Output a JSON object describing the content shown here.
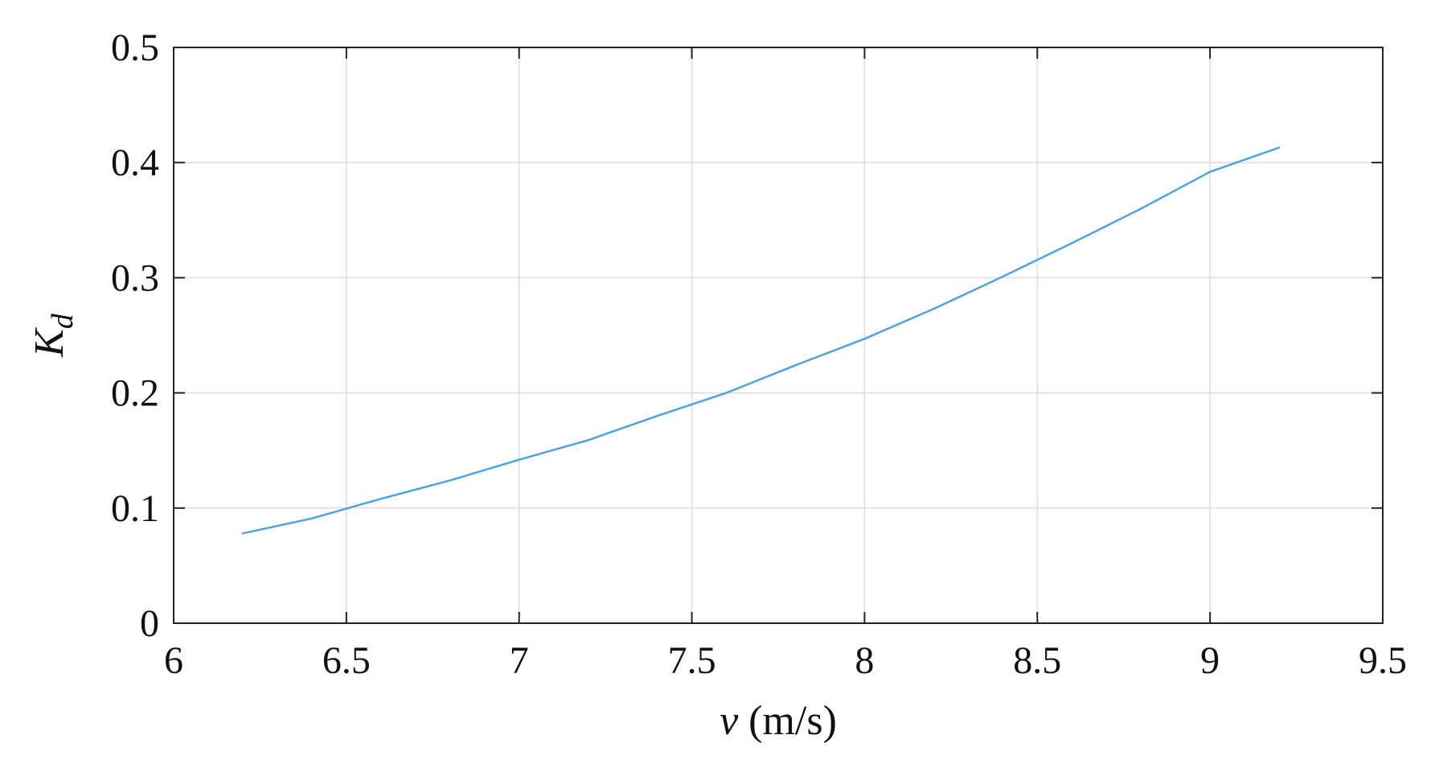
{
  "chart_data": {
    "type": "line",
    "title": "",
    "xlabel": {
      "symbol": "v",
      "unit": " (m/s)"
    },
    "ylabel": {
      "symbol": "K",
      "subscript": "d"
    },
    "xlim": [
      6,
      9.5
    ],
    "ylim": [
      0,
      0.5
    ],
    "xticks": [
      6,
      6.5,
      7,
      7.5,
      8,
      8.5,
      9,
      9.5
    ],
    "xtick_labels": [
      "6",
      "6.5",
      "7",
      "7.5",
      "8",
      "8.5",
      "9",
      "9.5"
    ],
    "yticks": [
      0,
      0.1,
      0.2,
      0.3,
      0.4,
      0.5
    ],
    "ytick_labels": [
      "0",
      "0.1",
      "0.2",
      "0.3",
      "0.4",
      "0.5"
    ],
    "grid": true,
    "series": [
      {
        "color": "#4da3df",
        "x": [
          6.2,
          6.4,
          6.6,
          6.8,
          7.0,
          7.2,
          7.4,
          7.6,
          7.8,
          8.0,
          8.2,
          8.4,
          8.6,
          8.8,
          9.0,
          9.2
        ],
        "y": [
          0.078,
          0.091,
          0.108,
          0.124,
          0.142,
          0.159,
          0.18,
          0.2,
          0.224,
          0.247,
          0.273,
          0.301,
          0.33,
          0.36,
          0.392,
          0.413
        ]
      }
    ]
  }
}
